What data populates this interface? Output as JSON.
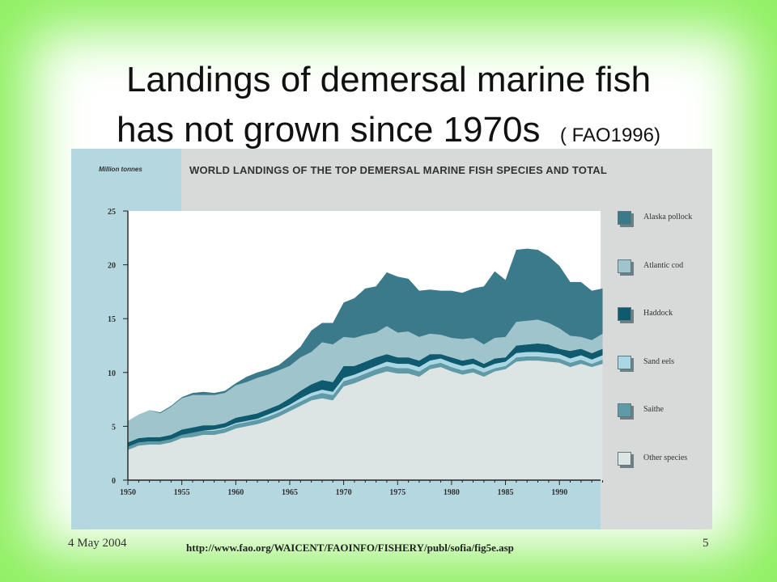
{
  "slide": {
    "title_line1": "Landings of demersal marine fish",
    "title_line2": "has not grown since 1970s",
    "title_citation": "( FAO1996)",
    "footer_date": "4 May 2004",
    "footer_url": "http://www.fao.org/WAICENT/FAOINFO/FISHERY/publ/sofia/fig5e.asp",
    "page_number": "5",
    "background_colors": {
      "edge": "#8ef060",
      "center": "#ffffff"
    }
  },
  "chart_data": {
    "type": "area",
    "stacked": true,
    "title": "WORLD LANDINGS OF THE TOP DEMERSAL MARINE FISH SPECIES AND TOTAL",
    "ylabel": "Million tonnes",
    "xlabel": "",
    "ylim": [
      0,
      25
    ],
    "xlim": [
      1950,
      1994
    ],
    "y_ticks": [
      "0",
      "5",
      "10",
      "15",
      "20",
      "25"
    ],
    "x_ticks": [
      "1950",
      "1955",
      "1960",
      "1965",
      "1970",
      "1975",
      "1980",
      "1985",
      "1990"
    ],
    "grid": false,
    "legend_position": "right",
    "x": [
      1950,
      1951,
      1952,
      1953,
      1954,
      1955,
      1956,
      1957,
      1958,
      1959,
      1960,
      1961,
      1962,
      1963,
      1964,
      1965,
      1966,
      1967,
      1968,
      1969,
      1970,
      1971,
      1972,
      1973,
      1974,
      1975,
      1976,
      1977,
      1978,
      1979,
      1980,
      1981,
      1982,
      1983,
      1984,
      1985,
      1986,
      1987,
      1988,
      1989,
      1990,
      1991,
      1992,
      1993,
      1994
    ],
    "series": [
      {
        "name": "Other species",
        "color": "#dde4e4",
        "values": [
          2.8,
          3.2,
          3.3,
          3.3,
          3.5,
          3.9,
          4.0,
          4.2,
          4.2,
          4.4,
          4.8,
          5.0,
          5.2,
          5.5,
          5.9,
          6.4,
          6.9,
          7.4,
          7.6,
          7.4,
          8.7,
          9.0,
          9.4,
          9.8,
          10.1,
          9.9,
          9.9,
          9.6,
          10.3,
          10.5,
          10.1,
          9.8,
          10.0,
          9.6,
          10.1,
          10.3,
          11.0,
          11.1,
          11.1,
          11.0,
          10.9,
          10.5,
          10.8,
          10.5,
          10.8
        ]
      },
      {
        "name": "Saithe",
        "color": "#5f9aa6",
        "values": [
          0.3,
          0.3,
          0.3,
          0.3,
          0.3,
          0.3,
          0.4,
          0.4,
          0.4,
          0.4,
          0.4,
          0.4,
          0.4,
          0.4,
          0.4,
          0.4,
          0.4,
          0.4,
          0.5,
          0.5,
          0.5,
          0.5,
          0.5,
          0.5,
          0.5,
          0.5,
          0.5,
          0.5,
          0.4,
          0.4,
          0.4,
          0.4,
          0.4,
          0.4,
          0.3,
          0.3,
          0.4,
          0.4,
          0.4,
          0.4,
          0.4,
          0.4,
          0.4,
          0.3,
          0.4
        ]
      },
      {
        "name": "Sand eels",
        "color": "#a9d8e4",
        "values": [
          0.0,
          0.0,
          0.0,
          0.0,
          0.0,
          0.0,
          0.0,
          0.0,
          0.1,
          0.1,
          0.1,
          0.1,
          0.1,
          0.2,
          0.2,
          0.2,
          0.3,
          0.3,
          0.3,
          0.3,
          0.3,
          0.3,
          0.3,
          0.3,
          0.4,
          0.4,
          0.4,
          0.4,
          0.4,
          0.4,
          0.4,
          0.4,
          0.4,
          0.4,
          0.4,
          0.4,
          0.4,
          0.4,
          0.4,
          0.4,
          0.4,
          0.4,
          0.4,
          0.4,
          0.4
        ]
      },
      {
        "name": "Haddock",
        "color": "#0f5a6e",
        "values": [
          0.4,
          0.4,
          0.4,
          0.4,
          0.4,
          0.5,
          0.5,
          0.5,
          0.4,
          0.4,
          0.5,
          0.5,
          0.5,
          0.5,
          0.5,
          0.6,
          0.7,
          0.8,
          0.9,
          0.9,
          1.1,
          0.8,
          0.8,
          0.8,
          0.7,
          0.6,
          0.6,
          0.6,
          0.6,
          0.4,
          0.5,
          0.5,
          0.5,
          0.4,
          0.5,
          0.4,
          0.7,
          0.7,
          0.8,
          0.8,
          0.5,
          0.7,
          0.6,
          0.6,
          0.6
        ]
      },
      {
        "name": "Atlantic cod",
        "color": "#9fc4cb",
        "values": [
          2.0,
          2.2,
          2.5,
          2.2,
          2.6,
          2.9,
          3.0,
          2.8,
          2.8,
          2.8,
          3.0,
          3.1,
          3.3,
          3.2,
          3.2,
          3.0,
          3.1,
          3.0,
          3.5,
          3.5,
          2.7,
          2.6,
          2.5,
          2.3,
          2.6,
          2.3,
          2.4,
          2.2,
          1.9,
          1.8,
          1.8,
          2.0,
          1.9,
          1.8,
          1.9,
          1.9,
          2.2,
          2.2,
          2.2,
          2.0,
          1.9,
          1.4,
          1.1,
          1.2,
          1.4
        ]
      },
      {
        "name": "Alaska pollock",
        "color": "#3a7a8b",
        "values": [
          0.0,
          0.0,
          0.0,
          0.1,
          0.1,
          0.1,
          0.2,
          0.3,
          0.2,
          0.2,
          0.2,
          0.5,
          0.5,
          0.5,
          0.5,
          0.9,
          1.0,
          2.0,
          1.8,
          2.0,
          3.2,
          3.7,
          4.3,
          4.3,
          5.0,
          5.2,
          4.9,
          4.3,
          4.1,
          4.1,
          4.4,
          4.3,
          4.6,
          5.4,
          6.2,
          5.3,
          6.7,
          6.7,
          6.5,
          6.2,
          5.8,
          5.0,
          5.1,
          4.6,
          4.2
        ]
      }
    ],
    "legend_order": [
      "Alaska pollock",
      "Atlantic cod",
      "Haddock",
      "Sand eels",
      "Saithe",
      "Other species"
    ]
  }
}
